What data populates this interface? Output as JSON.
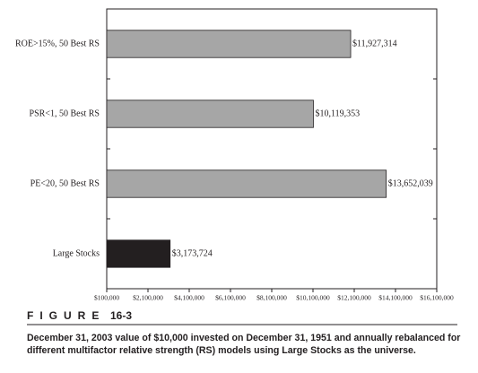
{
  "chart_data": {
    "type": "bar",
    "orientation": "horizontal",
    "categories": [
      "ROE>15%, 50 Best RS",
      "PSR<1, 50 Best RS",
      "PE<20, 50 Best RS",
      "Large Stocks"
    ],
    "values": [
      11927314,
      10119353,
      13652039,
      3173724
    ],
    "value_labels": [
      "$11,927,314",
      "$10,119,353",
      "$13,652,039",
      "$3,173,724"
    ],
    "colors": [
      "#a6a6a6",
      "#a6a6a6",
      "#a6a6a6",
      "#231f20"
    ],
    "xlim": [
      100000,
      16100000
    ],
    "xticks": [
      {
        "value": 100000,
        "label": "$100,000"
      },
      {
        "value": 2100000,
        "label": "$2,100,000"
      },
      {
        "value": 4100000,
        "label": "$4,100,000"
      },
      {
        "value": 6100000,
        "label": "$6,100,000"
      },
      {
        "value": 8100000,
        "label": "$8,100,000"
      },
      {
        "value": 10100000,
        "label": "$10,100,000"
      },
      {
        "value": 12100000,
        "label": "$12,100,000"
      },
      {
        "value": 14100000,
        "label": "$14,100,000"
      },
      {
        "value": 16100000,
        "label": "$16,100,000"
      }
    ],
    "grid": false
  },
  "figure": {
    "label": "FIGURE",
    "number": "16-3",
    "caption": [
      "December 31, 2003 value of $10,000 invested on December 31, 1951 and annually rebalanced for",
      "different multifactor relative strength (RS) models using Large Stocks as the universe."
    ]
  }
}
